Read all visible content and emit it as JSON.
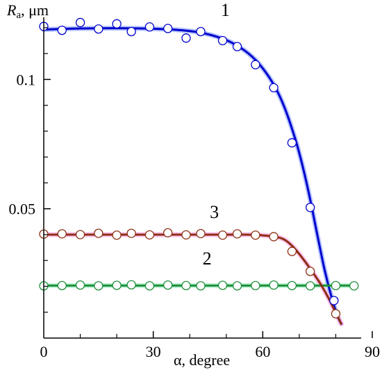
{
  "chart_data": {
    "type": "scatter",
    "title": "",
    "xlabel": "α, degree",
    "ylabel_main": "R",
    "ylabel_sub": "a",
    "ylabel_unit": ", μm",
    "xlim": [
      0,
      90
    ],
    "ylim": [
      0,
      0.124
    ],
    "x_ticks": [
      0,
      30,
      60,
      90
    ],
    "x_tick_labels": [
      "0",
      "30",
      "60",
      "90"
    ],
    "y_ticks": [
      0.05,
      0.1
    ],
    "y_tick_labels": [
      "0.05",
      "0.1"
    ],
    "grid": false,
    "legend": "none",
    "series": [
      {
        "label": "1",
        "color": "#0000cc",
        "glow": "#9fb4ff",
        "label_pos": [
          48.5,
          0.1245
        ],
        "points": [
          [
            0,
            0.1205
          ],
          [
            5,
            0.119
          ],
          [
            10,
            0.122
          ],
          [
            15,
            0.1195
          ],
          [
            20,
            0.1215
          ],
          [
            24,
            0.1185
          ],
          [
            29,
            0.1203
          ],
          [
            34,
            0.1197
          ],
          [
            39,
            0.116
          ],
          [
            43,
            0.1185
          ],
          [
            49,
            0.115
          ],
          [
            53,
            0.1127
          ],
          [
            58,
            0.1057
          ],
          [
            63,
            0.0968
          ],
          [
            68,
            0.0755
          ],
          [
            73,
            0.0505
          ],
          [
            79.5,
            0.0145
          ]
        ],
        "curve": [
          [
            0,
            0.1193
          ],
          [
            10,
            0.1197
          ],
          [
            20,
            0.1198
          ],
          [
            30,
            0.1196
          ],
          [
            38,
            0.119
          ],
          [
            44,
            0.1178
          ],
          [
            50,
            0.1152
          ],
          [
            55,
            0.1112
          ],
          [
            59,
            0.106
          ],
          [
            63,
            0.098
          ],
          [
            66,
            0.089
          ],
          [
            69,
            0.0765
          ],
          [
            71,
            0.066
          ],
          [
            73,
            0.0535
          ],
          [
            75,
            0.0395
          ],
          [
            77,
            0.026
          ],
          [
            79,
            0.015
          ],
          [
            80.5,
            0.0085
          ],
          [
            81.5,
            0.0055
          ]
        ]
      },
      {
        "label": "2",
        "color": "#1f8f3a",
        "glow": "#a8f0c8",
        "label_pos": [
          43.5,
          0.0285
        ],
        "points": [
          [
            0,
            0.0202
          ],
          [
            5,
            0.0203
          ],
          [
            10,
            0.0205
          ],
          [
            15,
            0.0202
          ],
          [
            20,
            0.0204
          ],
          [
            24,
            0.0206
          ],
          [
            29,
            0.0202
          ],
          [
            34,
            0.0205
          ],
          [
            39,
            0.0203
          ],
          [
            43,
            0.0202
          ],
          [
            49,
            0.0204
          ],
          [
            53,
            0.0202
          ],
          [
            58,
            0.0203
          ],
          [
            63,
            0.0205
          ],
          [
            68,
            0.0203
          ],
          [
            73,
            0.0202
          ],
          [
            80,
            0.0203
          ],
          [
            85,
            0.0202
          ]
        ],
        "curve": [
          [
            0,
            0.0203
          ],
          [
            85,
            0.0203
          ]
        ]
      },
      {
        "label": "3",
        "color": "#8b2f12",
        "glow": "#ffb0e8",
        "label_pos": [
          45.5,
          0.0465
        ],
        "points": [
          [
            0,
            0.0402
          ],
          [
            5,
            0.0403
          ],
          [
            10,
            0.04
          ],
          [
            15,
            0.0405
          ],
          [
            20,
            0.0398
          ],
          [
            24,
            0.0405
          ],
          [
            29,
            0.0399
          ],
          [
            34,
            0.0407
          ],
          [
            39,
            0.0399
          ],
          [
            43,
            0.0404
          ],
          [
            49,
            0.0398
          ],
          [
            53,
            0.0403
          ],
          [
            58,
            0.0398
          ],
          [
            63,
            0.0392
          ],
          [
            68,
            0.0335
          ],
          [
            73,
            0.0258
          ],
          [
            80,
            0.0094
          ]
        ],
        "curve": [
          [
            0,
            0.04
          ],
          [
            30,
            0.04
          ],
          [
            55,
            0.04
          ],
          [
            60,
            0.0397
          ],
          [
            64,
            0.039
          ],
          [
            66,
            0.038
          ],
          [
            68,
            0.0357
          ],
          [
            70,
            0.0325
          ],
          [
            72,
            0.0288
          ],
          [
            74,
            0.0248
          ],
          [
            76,
            0.0205
          ],
          [
            78,
            0.0155
          ],
          [
            80,
            0.0098
          ],
          [
            81.5,
            0.0055
          ]
        ]
      }
    ]
  }
}
